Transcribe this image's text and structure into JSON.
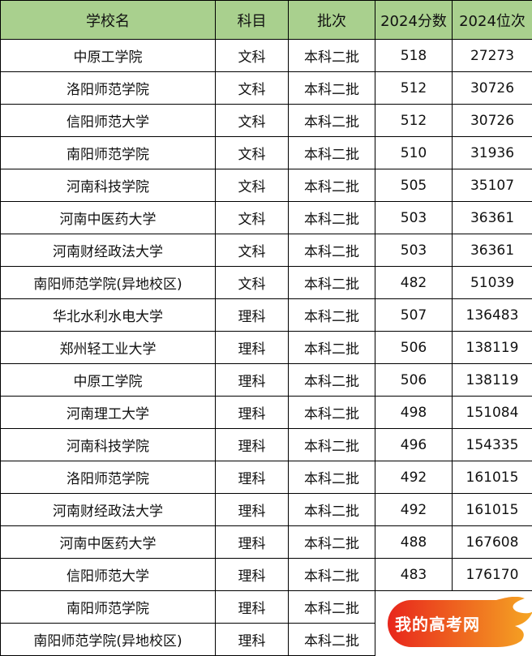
{
  "header": [
    "学校名",
    "科目",
    "批次",
    "2024分数",
    "2024位次"
  ],
  "rows": [
    [
      "中原工学院",
      "文科",
      "本科二批",
      "518",
      "27273"
    ],
    [
      "洛阳师范学院",
      "文科",
      "本科二批",
      "512",
      "30726"
    ],
    [
      "信阳师范大学",
      "文科",
      "本科二批",
      "512",
      "30726"
    ],
    [
      "南阳师范学院",
      "文科",
      "本科二批",
      "510",
      "31936"
    ],
    [
      "河南科技学院",
      "文科",
      "本科二批",
      "505",
      "35107"
    ],
    [
      "河南中医药大学",
      "文科",
      "本科二批",
      "503",
      "36361"
    ],
    [
      "河南财经政法大学",
      "文科",
      "本科二批",
      "503",
      "36361"
    ],
    [
      "南阳师范学院(异地校区)",
      "文科",
      "本科二批",
      "482",
      "51039"
    ],
    [
      "华北水利水电大学",
      "理科",
      "本科二批",
      "507",
      "136483"
    ],
    [
      "郑州轻工业大学",
      "理科",
      "本科二批",
      "506",
      "138119"
    ],
    [
      "中原工学院",
      "理科",
      "本科二批",
      "506",
      "138119"
    ],
    [
      "河南理工大学",
      "理科",
      "本科二批",
      "498",
      "151084"
    ],
    [
      "河南科技学院",
      "理科",
      "本科二批",
      "496",
      "154335"
    ],
    [
      "洛阳师范学院",
      "理科",
      "本科二批",
      "492",
      "161015"
    ],
    [
      "河南财经政法大学",
      "理科",
      "本科二批",
      "492",
      "161015"
    ],
    [
      "河南中医药大学",
      "理科",
      "本科二批",
      "488",
      "167608"
    ],
    [
      "信阳师范大学",
      "理科",
      "本科二批",
      "483",
      "176170"
    ],
    [
      "南阳师范学院",
      "理科",
      "本科二批",
      "",
      ""
    ],
    [
      "南阳师范学院(异地校区)",
      "理科",
      "本科二批",
      "",
      ""
    ]
  ],
  "watermark": {
    "text": "我的高考网",
    "colors": [
      "#e8261c",
      "#f5a623"
    ]
  }
}
